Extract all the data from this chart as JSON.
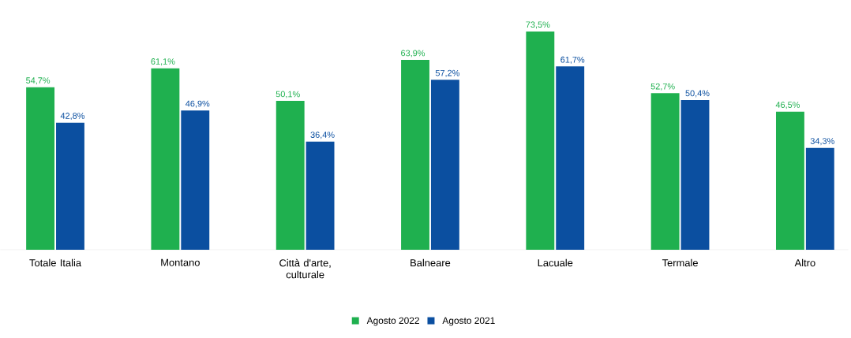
{
  "chart_data": {
    "type": "bar",
    "categories": [
      "Totale Italia",
      "Montano",
      "Città d'arte, culturale",
      "Balneare",
      "Lacuale",
      "Termale",
      "Altro"
    ],
    "series": [
      {
        "name": "Agosto 2022",
        "color": "#1fb04f",
        "values": [
          54.7,
          61.1,
          50.1,
          63.9,
          73.5,
          52.7,
          46.5
        ],
        "value_labels": [
          "54,7%",
          "61,1%",
          "50,1%",
          "63,9%",
          "73,5%",
          "52,7%",
          "46,5%"
        ]
      },
      {
        "name": "Agosto 2021",
        "color": "#0b4fa0",
        "values": [
          42.8,
          46.9,
          36.4,
          57.2,
          61.7,
          50.4,
          34.3
        ],
        "value_labels": [
          "42,8%",
          "46,9%",
          "36,4%",
          "57,2%",
          "61,7%",
          "50,4%",
          "34,3%"
        ]
      }
    ],
    "legend": "bottom"
  }
}
